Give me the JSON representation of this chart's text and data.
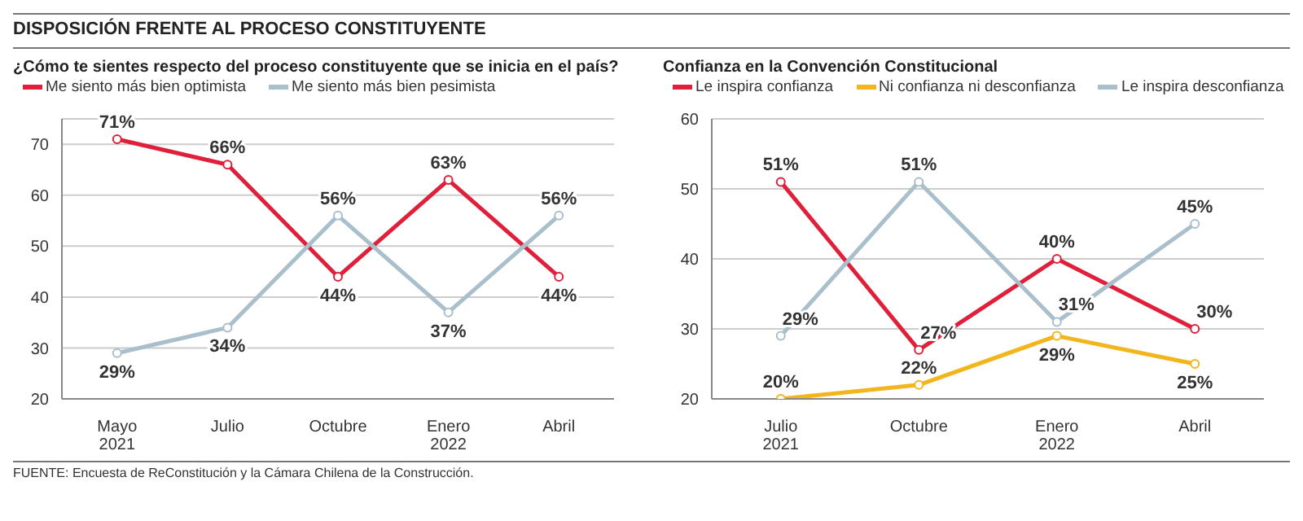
{
  "chart_data": [
    {
      "type": "line",
      "title": "DISPOSICIÓN FRENTE AL PROCESO CONSTITUYENTE",
      "subtitle": "¿Cómo te sientes respecto del proceso constituyente que se inicia en el país?",
      "categories": [
        "Mayo\n2021",
        "Julio",
        "Octubre",
        "Enero\n2022",
        "Abril"
      ],
      "series": [
        {
          "name": "Me siento más bien optimista",
          "color": "#e0203a",
          "values": [
            71,
            66,
            44,
            63,
            44
          ],
          "value_labels": [
            "71%",
            "66%",
            "44%",
            "63%",
            "44%"
          ]
        },
        {
          "name": "Me siento más bien pesimista",
          "color": "#a9bfcc",
          "values": [
            29,
            34,
            56,
            37,
            56
          ],
          "value_labels": [
            "29%",
            "34%",
            "56%",
            "37%",
            "56%"
          ]
        }
      ],
      "ylim": [
        20,
        75
      ],
      "yticks": [
        20,
        30,
        40,
        50,
        60,
        70
      ],
      "grid": "y",
      "legend": "top left",
      "marker": "circle",
      "line_style": "solid",
      "annotations": [
        "FUENTE: Encuesta de ReConstitución y la Cámara Chilena de la Construcción."
      ]
    },
    {
      "type": "line",
      "title": "Confianza en la Convención Constitucional",
      "categories": [
        "Julio\n2021",
        "Octubre",
        "Enero\n2022",
        "Abril"
      ],
      "series": [
        {
          "name": "Le inspira confianza",
          "color": "#e0203a",
          "values": [
            51,
            27,
            40,
            30
          ],
          "value_labels": [
            "51%",
            "27%",
            "40%",
            "30%"
          ]
        },
        {
          "name": "Ni confianza ni desconfianza",
          "color": "#f2b51c",
          "values": [
            20,
            22,
            29,
            25
          ],
          "value_labels": [
            "20%",
            "22%",
            "29%",
            "25%"
          ]
        },
        {
          "name": "Le inspira desconfianza",
          "color": "#a9bfcc",
          "values": [
            29,
            51,
            31,
            45
          ],
          "value_labels": [
            "29%",
            "51%",
            "31%",
            "45%"
          ]
        }
      ],
      "ylim": [
        20,
        60
      ],
      "yticks": [
        20,
        30,
        40,
        50,
        60
      ],
      "grid": "y",
      "legend": "top left",
      "marker": "circle",
      "line_style": "solid"
    }
  ]
}
